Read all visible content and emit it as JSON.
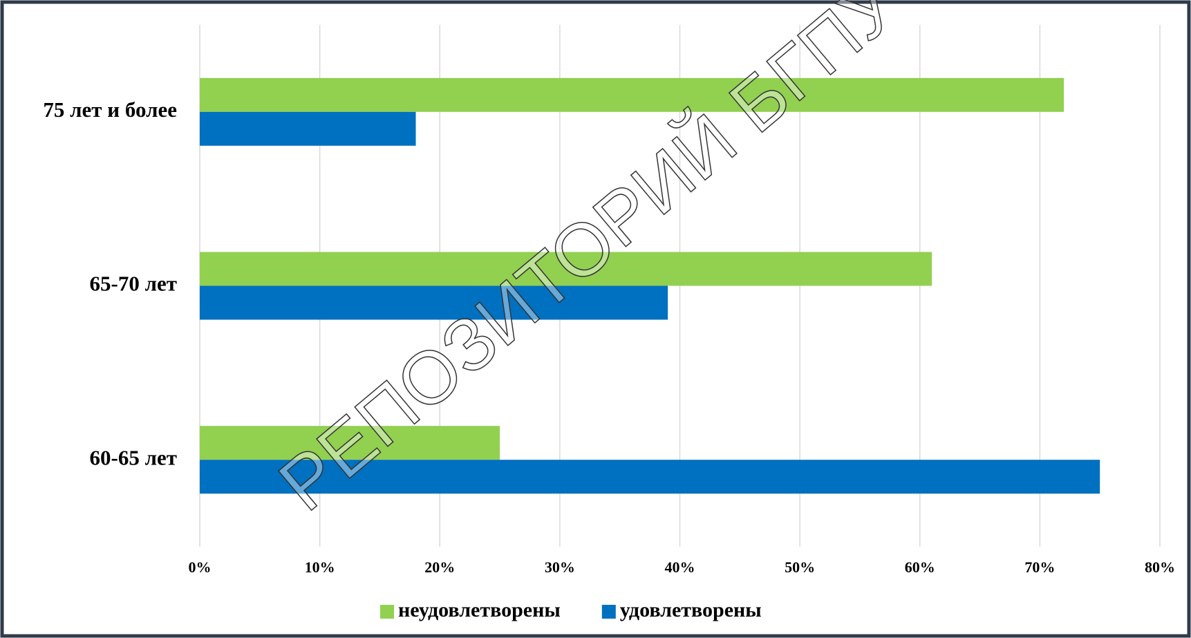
{
  "chart_data": {
    "type": "hbar",
    "categories": [
      "60-65 лет",
      "65-70 лет",
      "75 лет и более"
    ],
    "series": [
      {
        "name": "неудовлетворены",
        "color": "#92d050",
        "values": [
          25,
          61,
          72
        ]
      },
      {
        "name": "удовлетворены",
        "color": "#0070c0",
        "values": [
          75,
          39,
          18
        ]
      }
    ],
    "xlim": [
      0,
      80
    ],
    "xticks": [
      {
        "value": 0,
        "label": "0%"
      },
      {
        "value": 10,
        "label": "10%"
      },
      {
        "value": 20,
        "label": "20%"
      },
      {
        "value": 30,
        "label": "30%"
      },
      {
        "value": 40,
        "label": "40%"
      },
      {
        "value": 50,
        "label": "50%"
      },
      {
        "value": 60,
        "label": "60%"
      },
      {
        "value": 70,
        "label": "70%"
      },
      {
        "value": 80,
        "label": "80%"
      }
    ],
    "grid": true,
    "legend": "bottom",
    "watermark": "РЕПОЗИТОРИЙ БГПУ"
  }
}
